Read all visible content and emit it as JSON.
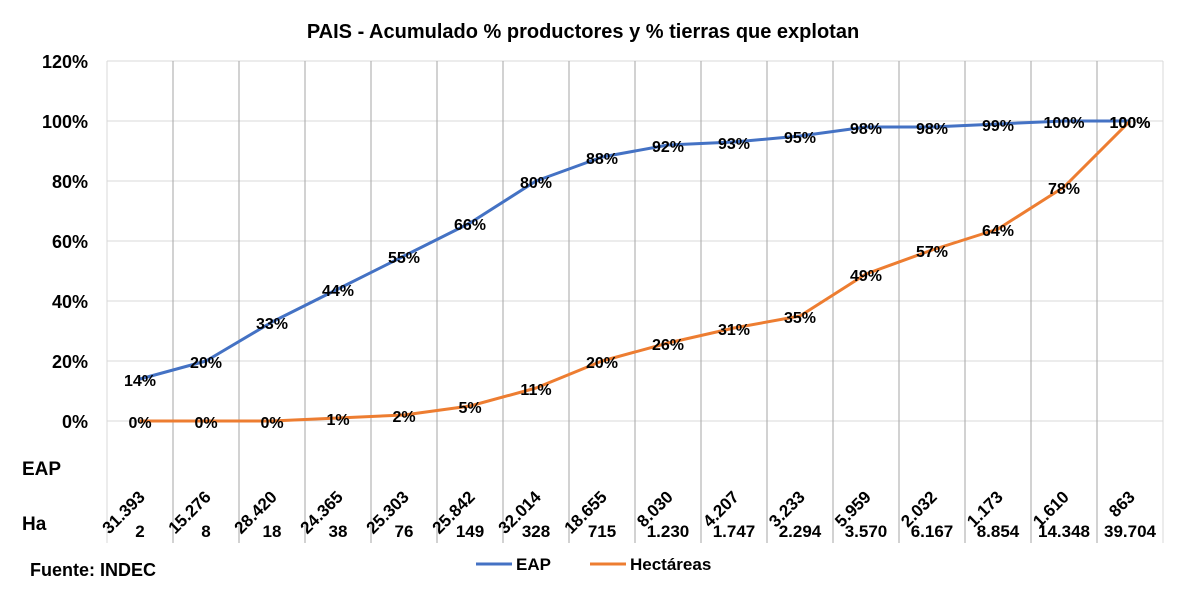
{
  "chart_data": {
    "type": "line",
    "title": "PAIS - Acumulado % productores y % tierras que explotan",
    "ylim": [
      0,
      120
    ],
    "yticks": [
      "0%",
      "20%",
      "40%",
      "60%",
      "80%",
      "100%",
      "120%"
    ],
    "grid": true,
    "legend_position": "bottom",
    "row_labels": {
      "eap": "EAP",
      "ha": "Ha"
    },
    "categories_eap": [
      "31.393",
      "15.276",
      "28.420",
      "24.365",
      "25.303",
      "25.842",
      "32.014",
      "18.655",
      "8.030",
      "4.207",
      "3.233",
      "5.959",
      "2.032",
      "1.173",
      "1.610",
      "863"
    ],
    "categories_ha": [
      "2",
      "8",
      "18",
      "38",
      "76",
      "149",
      "328",
      "715",
      "1.230",
      "1.747",
      "2.294",
      "3.570",
      "6.167",
      "8.854",
      "14.348",
      "39.704"
    ],
    "series": [
      {
        "name": "EAP",
        "color": "#4472C4",
        "values": [
          14,
          20,
          33,
          44,
          55,
          66,
          80,
          88,
          92,
          93,
          95,
          98,
          98,
          99,
          100,
          100
        ]
      },
      {
        "name": "Hectáreas",
        "color": "#ED7D31",
        "values": [
          0,
          0,
          0,
          1,
          2,
          5,
          11,
          20,
          26,
          31,
          35,
          49,
          57,
          64,
          78,
          100
        ]
      }
    ],
    "source": "Fuente: INDEC"
  }
}
